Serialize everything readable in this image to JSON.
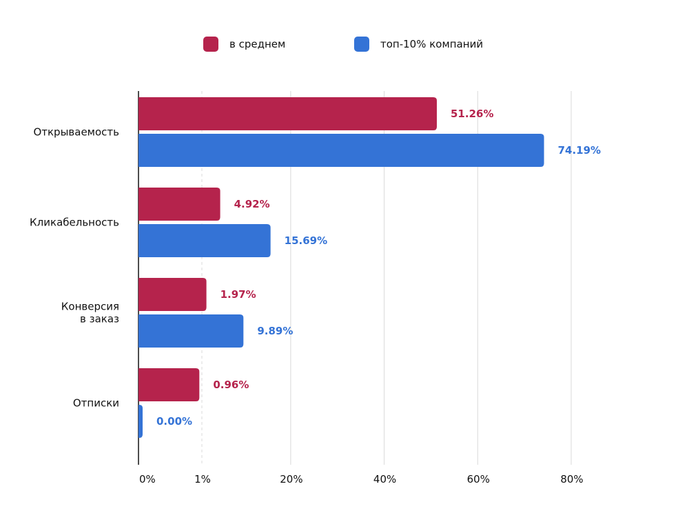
{
  "chart_data": {
    "type": "bar",
    "orientation": "horizontal",
    "categories": [
      [
        "Открываемость"
      ],
      [
        "Кликабельность"
      ],
      [
        "Конверсия",
        "в заказ"
      ],
      [
        "Отписки"
      ]
    ],
    "series": [
      {
        "name": "в среднем",
        "color": "#b5234c",
        "values": [
          51.26,
          4.92,
          1.97,
          0.96
        ],
        "labels": [
          "51.26%",
          "4.92%",
          "1.97%",
          "0.96%"
        ]
      },
      {
        "name": "топ-10% компаний",
        "color": "#3473d6",
        "values": [
          74.19,
          15.69,
          9.89,
          0.0
        ],
        "labels": [
          "74.19%",
          "15.69%",
          "9.89%",
          "0.00%"
        ]
      }
    ],
    "x_ticks": [
      {
        "value": 0,
        "label": "0%",
        "grid": false
      },
      {
        "value": 1,
        "label": "1%",
        "grid": "dashed"
      },
      {
        "value": 20,
        "label": "20%",
        "grid": "solid"
      },
      {
        "value": 40,
        "label": "40%",
        "grid": "solid"
      },
      {
        "value": 60,
        "label": "60%",
        "grid": "solid"
      },
      {
        "value": 80,
        "label": "80%",
        "grid": "solid"
      }
    ],
    "xscale": "broken: 0–1% expanded, 1–80% linear",
    "legend_position": "top-center"
  }
}
